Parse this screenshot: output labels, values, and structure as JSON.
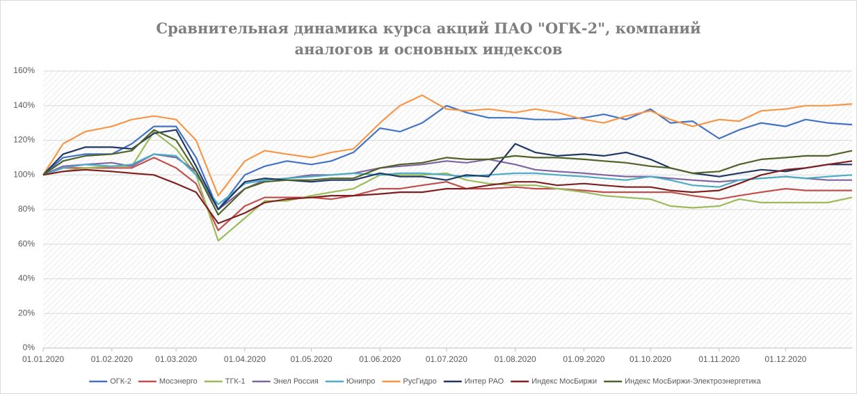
{
  "chart_data": {
    "type": "line",
    "title": "Сравнительная динамика курса акций ПАО \"ОГК-2\", компаний аналогов и основных индексов",
    "x": [
      "01.01.2020",
      "10.01.2020",
      "20.01.2020",
      "01.02.2020",
      "10.02.2020",
      "20.02.2020",
      "01.03.2020",
      "10.03.2020",
      "20.03.2020",
      "01.04.2020",
      "10.04.2020",
      "20.04.2020",
      "01.05.2020",
      "10.05.2020",
      "20.05.2020",
      "01.06.2020",
      "10.06.2020",
      "20.06.2020",
      "01.07.2020",
      "10.07.2020",
      "20.07.2020",
      "01.08.2020",
      "10.08.2020",
      "20.08.2020",
      "01.09.2020",
      "10.09.2020",
      "20.09.2020",
      "01.10.2020",
      "10.10.2020",
      "20.10.2020",
      "01.11.2020",
      "10.11.2020",
      "20.11.2020",
      "01.12.2020",
      "10.12.2020",
      "20.12.2020",
      "31.12.2020"
    ],
    "series": [
      {
        "name": "ОГК-2",
        "color": "#4472c4",
        "values": [
          100,
          110,
          112,
          112,
          118,
          128,
          128,
          110,
          80,
          100,
          105,
          108,
          106,
          108,
          113,
          127,
          125,
          130,
          140,
          136,
          133,
          133,
          132,
          132,
          133,
          135,
          132,
          138,
          130,
          131,
          121,
          126,
          130,
          128,
          132,
          130,
          129
        ]
      },
      {
        "name": "Мосэнерго",
        "color": "#c0504d",
        "values": [
          100,
          104,
          104,
          104,
          104,
          110,
          104,
          95,
          68,
          82,
          87,
          87,
          87,
          86,
          88,
          92,
          92,
          94,
          96,
          92,
          92,
          93,
          92,
          92,
          91,
          90,
          90,
          90,
          90,
          88,
          86,
          88,
          90,
          92,
          91,
          91,
          91
        ]
      },
      {
        "name": "ТГК-1",
        "color": "#9bbb59",
        "values": [
          100,
          102,
          104,
          105,
          105,
          125,
          115,
          100,
          62,
          75,
          85,
          85,
          88,
          90,
          92,
          100,
          100,
          100,
          101,
          97,
          95,
          94,
          94,
          92,
          90,
          88,
          87,
          86,
          82,
          81,
          82,
          86,
          84,
          84,
          84,
          84,
          87
        ]
      },
      {
        "name": "Энел Россия",
        "color": "#8064a2",
        "values": [
          100,
          105,
          106,
          107,
          105,
          112,
          110,
          102,
          80,
          92,
          97,
          98,
          100,
          100,
          101,
          104,
          105,
          106,
          108,
          107,
          109,
          106,
          103,
          102,
          101,
          100,
          99,
          99,
          98,
          97,
          96,
          97,
          98,
          99,
          98,
          97,
          97
        ]
      },
      {
        "name": "Юнипро",
        "color": "#4bacc6",
        "values": [
          100,
          104,
          106,
          105,
          106,
          112,
          111,
          100,
          83,
          95,
          97,
          98,
          99,
          100,
          101,
          100,
          101,
          101,
          100,
          99,
          100,
          101,
          101,
          100,
          99,
          98,
          97,
          99,
          97,
          94,
          93,
          97,
          98,
          99,
          98,
          99,
          100
        ]
      },
      {
        "name": "РусГидро",
        "color": "#f79646",
        "values": [
          100,
          118,
          125,
          128,
          132,
          134,
          132,
          120,
          88,
          108,
          114,
          112,
          110,
          113,
          115,
          130,
          140,
          146,
          138,
          137,
          138,
          136,
          138,
          136,
          132,
          130,
          134,
          137,
          132,
          128,
          132,
          131,
          137,
          138,
          140,
          140,
          141
        ]
      },
      {
        "name": "Интер РАО",
        "color": "#1f3864",
        "values": [
          100,
          112,
          116,
          116,
          115,
          124,
          126,
          105,
          80,
          96,
          98,
          97,
          96,
          97,
          97,
          101,
          99,
          99,
          97,
          100,
          99,
          118,
          113,
          111,
          112,
          111,
          113,
          109,
          104,
          101,
          99,
          101,
          103,
          102,
          104,
          106,
          106
        ]
      },
      {
        "name": "Индекс МосБиржи",
        "color": "#7f1f1f",
        "values": [
          100,
          102,
          103,
          102,
          101,
          100,
          95,
          90,
          72,
          78,
          84,
          86,
          87,
          88,
          88,
          89,
          90,
          90,
          92,
          92,
          94,
          96,
          96,
          94,
          95,
          94,
          93,
          93,
          91,
          90,
          91,
          95,
          100,
          103,
          104,
          106,
          108
        ]
      },
      {
        "name": "Индекс МосБиржи-Электроэнергетика",
        "color": "#4f6228",
        "values": [
          100,
          108,
          111,
          112,
          114,
          126,
          120,
          102,
          77,
          92,
          96,
          97,
          97,
          98,
          98,
          104,
          106,
          107,
          110,
          109,
          109,
          111,
          110,
          110,
          109,
          108,
          107,
          105,
          104,
          101,
          102,
          106,
          109,
          110,
          111,
          111,
          114
        ]
      }
    ],
    "xlim": [
      "01.01.2020",
      "31.12.2020"
    ],
    "xticks": [
      "01.01.2020",
      "01.02.2020",
      "01.03.2020",
      "01.04.2020",
      "01.05.2020",
      "01.06.2020",
      "01.07.2020",
      "01.08.2020",
      "01.09.2020",
      "01.10.2020",
      "01.11.2020",
      "01.12.2020"
    ],
    "ylim": [
      0,
      160
    ],
    "yticks": [
      {
        "value": 0,
        "label": "0%"
      },
      {
        "value": 20,
        "label": "20%"
      },
      {
        "value": 40,
        "label": "40%"
      },
      {
        "value": 60,
        "label": "60%"
      },
      {
        "value": 80,
        "label": "80%"
      },
      {
        "value": 100,
        "label": "100%"
      },
      {
        "value": 120,
        "label": "120%"
      },
      {
        "value": 140,
        "label": "140%"
      },
      {
        "value": 160,
        "label": "160%"
      }
    ],
    "grid": true,
    "legend": "bottom"
  }
}
